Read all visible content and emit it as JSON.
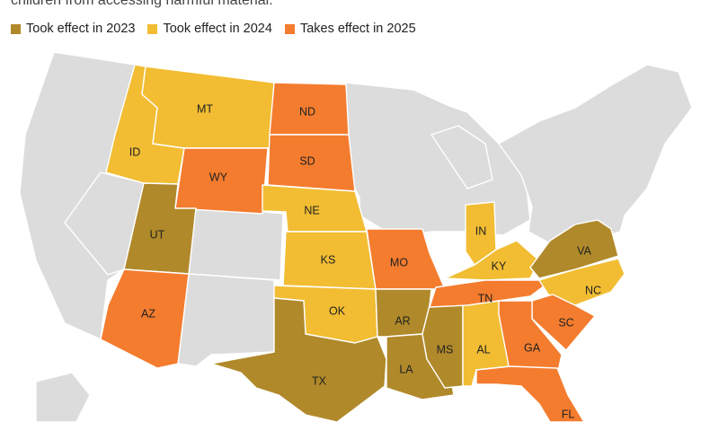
{
  "caption": "children from accessing harmful material.",
  "legend": [
    {
      "label": "Took effect in 2023",
      "color": "#b0892a"
    },
    {
      "label": "Took effect in 2024",
      "color": "#f2bd33"
    },
    {
      "label": "Takes effect in 2025",
      "color": "#f47c2e"
    }
  ],
  "colors": {
    "none": "#dcdcdc",
    "border": "#ffffff"
  },
  "states": {
    "UT": {
      "label": "UT",
      "year": 2023
    },
    "AR": {
      "label": "AR",
      "year": 2023
    },
    "TX": {
      "label": "TX",
      "year": 2023
    },
    "LA": {
      "label": "LA",
      "year": 2023
    },
    "MS": {
      "label": "MS",
      "year": 2023
    },
    "VA": {
      "label": "VA",
      "year": 2023
    },
    "MT": {
      "label": "MT",
      "year": 2024
    },
    "ID": {
      "label": "ID",
      "year": 2024
    },
    "NE": {
      "label": "NE",
      "year": 2024
    },
    "KS": {
      "label": "KS",
      "year": 2024
    },
    "OK": {
      "label": "OK",
      "year": 2024
    },
    "IN": {
      "label": "IN",
      "year": 2024
    },
    "KY": {
      "label": "KY",
      "year": 2024
    },
    "NC": {
      "label": "NC",
      "year": 2024
    },
    "AL": {
      "label": "AL",
      "year": 2024
    },
    "ND": {
      "label": "ND",
      "year": 2025
    },
    "SD": {
      "label": "SD",
      "year": 2025
    },
    "WY": {
      "label": "WY",
      "year": 2025
    },
    "AZ": {
      "label": "AZ",
      "year": 2025
    },
    "MO": {
      "label": "MO",
      "year": 2025
    },
    "TN": {
      "label": "TN",
      "year": 2025
    },
    "GA": {
      "label": "GA",
      "year": 2025
    },
    "SC": {
      "label": "SC",
      "year": 2025
    },
    "FL": {
      "label": "FL",
      "year": 2025
    }
  }
}
